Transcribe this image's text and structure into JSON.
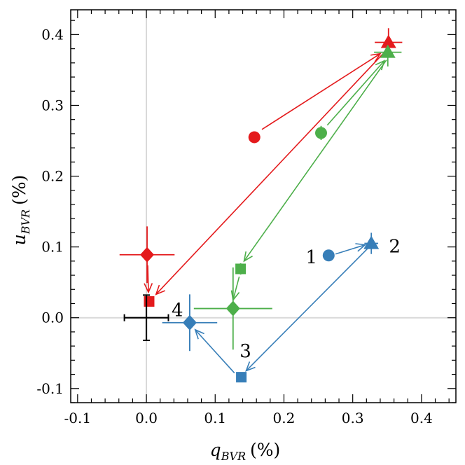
{
  "chart_data": {
    "type": "scatter",
    "title": "",
    "xlabel": "q_BVR (%)",
    "ylabel": "u_BVR (%)",
    "xlabel_parts": {
      "var": "q",
      "sub": "BVR",
      "unit": "(%)"
    },
    "ylabel_parts": {
      "var": "u",
      "sub": "BVR",
      "unit": "(%)"
    },
    "xlim": [
      -0.11,
      0.45
    ],
    "ylim": [
      -0.12,
      0.435
    ],
    "xticks": [
      -0.1,
      0.0,
      0.1,
      0.2,
      0.3,
      0.4
    ],
    "xtick_labels": [
      "-0.1",
      "0.0",
      "0.1",
      "0.2",
      "0.3",
      "0.4"
    ],
    "yticks": [
      -0.1,
      0.0,
      0.1,
      0.2,
      0.3,
      0.4
    ],
    "ytick_labels": [
      "-0.1",
      "0.0",
      "0.1",
      "0.2",
      "0.3",
      "0.4"
    ],
    "reference_lines": {
      "x": 0.0,
      "y": 0.0
    },
    "series": [
      {
        "name": "red",
        "color": "#e41a1c",
        "points": [
          {
            "epoch": 1,
            "marker": "circle",
            "x": 0.157,
            "y": 0.255,
            "xerr": 0.004,
            "yerr": 0.006
          },
          {
            "epoch": 2,
            "marker": "triangle",
            "x": 0.352,
            "y": 0.389,
            "xerr": 0.02,
            "yerr": 0.02
          },
          {
            "epoch": 3,
            "marker": "square",
            "x": 0.004,
            "y": 0.023,
            "xerr": 0.004,
            "yerr": 0.006
          },
          {
            "epoch": 4,
            "marker": "diamond",
            "x": 0.001,
            "y": 0.089,
            "xerr": 0.04,
            "yerr": 0.04
          }
        ]
      },
      {
        "name": "green",
        "color": "#4daf4a",
        "points": [
          {
            "epoch": 1,
            "marker": "circle",
            "x": 0.254,
            "y": 0.261,
            "xerr": 0.004,
            "yerr": 0.01
          },
          {
            "epoch": 2,
            "marker": "triangle",
            "x": 0.351,
            "y": 0.375,
            "xerr": 0.02,
            "yerr": 0.02
          },
          {
            "epoch": 3,
            "marker": "square",
            "x": 0.137,
            "y": 0.069,
            "xerr": 0.004,
            "yerr": 0.008
          },
          {
            "epoch": 4,
            "marker": "diamond",
            "x": 0.126,
            "y": 0.013,
            "xerr": 0.057,
            "yerr": 0.058
          }
        ]
      },
      {
        "name": "blue",
        "color": "#377eb8",
        "points": [
          {
            "epoch": 1,
            "marker": "circle",
            "x": 0.265,
            "y": 0.088,
            "xerr": 0.004,
            "yerr": 0.004
          },
          {
            "epoch": 2,
            "marker": "triangle",
            "x": 0.327,
            "y": 0.105,
            "xerr": 0.01,
            "yerr": 0.015
          },
          {
            "epoch": 3,
            "marker": "square",
            "x": 0.138,
            "y": -0.084,
            "xerr": 0.004,
            "yerr": 0.006
          },
          {
            "epoch": 4,
            "marker": "diamond",
            "x": 0.063,
            "y": -0.007,
            "xerr": 0.04,
            "yerr": 0.04
          }
        ]
      }
    ],
    "arrows": [
      {
        "color": "#e41a1c",
        "from": [
          0.168,
          0.266
        ],
        "to": [
          0.34,
          0.373
        ]
      },
      {
        "color": "#e41a1c",
        "from": [
          0.346,
          0.375
        ],
        "to": [
          0.014,
          0.033
        ]
      },
      {
        "color": "#e41a1c",
        "from": [
          0.002,
          0.074
        ],
        "to": [
          0.003,
          0.036
        ]
      },
      {
        "color": "#4daf4a",
        "from": [
          0.263,
          0.272
        ],
        "to": [
          0.346,
          0.363
        ]
      },
      {
        "color": "#4daf4a",
        "from": [
          0.349,
          0.364
        ],
        "to": [
          0.142,
          0.08
        ]
      },
      {
        "color": "#4daf4a",
        "from": [
          0.135,
          0.058
        ],
        "to": [
          0.126,
          0.025
        ]
      },
      {
        "color": "#377eb8",
        "from": [
          0.275,
          0.09
        ],
        "to": [
          0.318,
          0.103
        ]
      },
      {
        "color": "#377eb8",
        "from": [
          0.324,
          0.1
        ],
        "to": [
          0.145,
          -0.075
        ]
      },
      {
        "color": "#377eb8",
        "from": [
          0.128,
          -0.078
        ],
        "to": [
          0.071,
          -0.017
        ]
      }
    ],
    "annotations": [
      {
        "text": "1",
        "x": 0.24,
        "y": 0.086
      },
      {
        "text": "2",
        "x": 0.361,
        "y": 0.101
      },
      {
        "text": "3",
        "x": 0.144,
        "y": -0.047
      },
      {
        "text": "4",
        "x": 0.045,
        "y": 0.011
      }
    ],
    "reference_point": {
      "color": "#000000",
      "x": 0.0,
      "y": 0.0,
      "xerr": 0.032,
      "yerr": 0.032
    }
  }
}
